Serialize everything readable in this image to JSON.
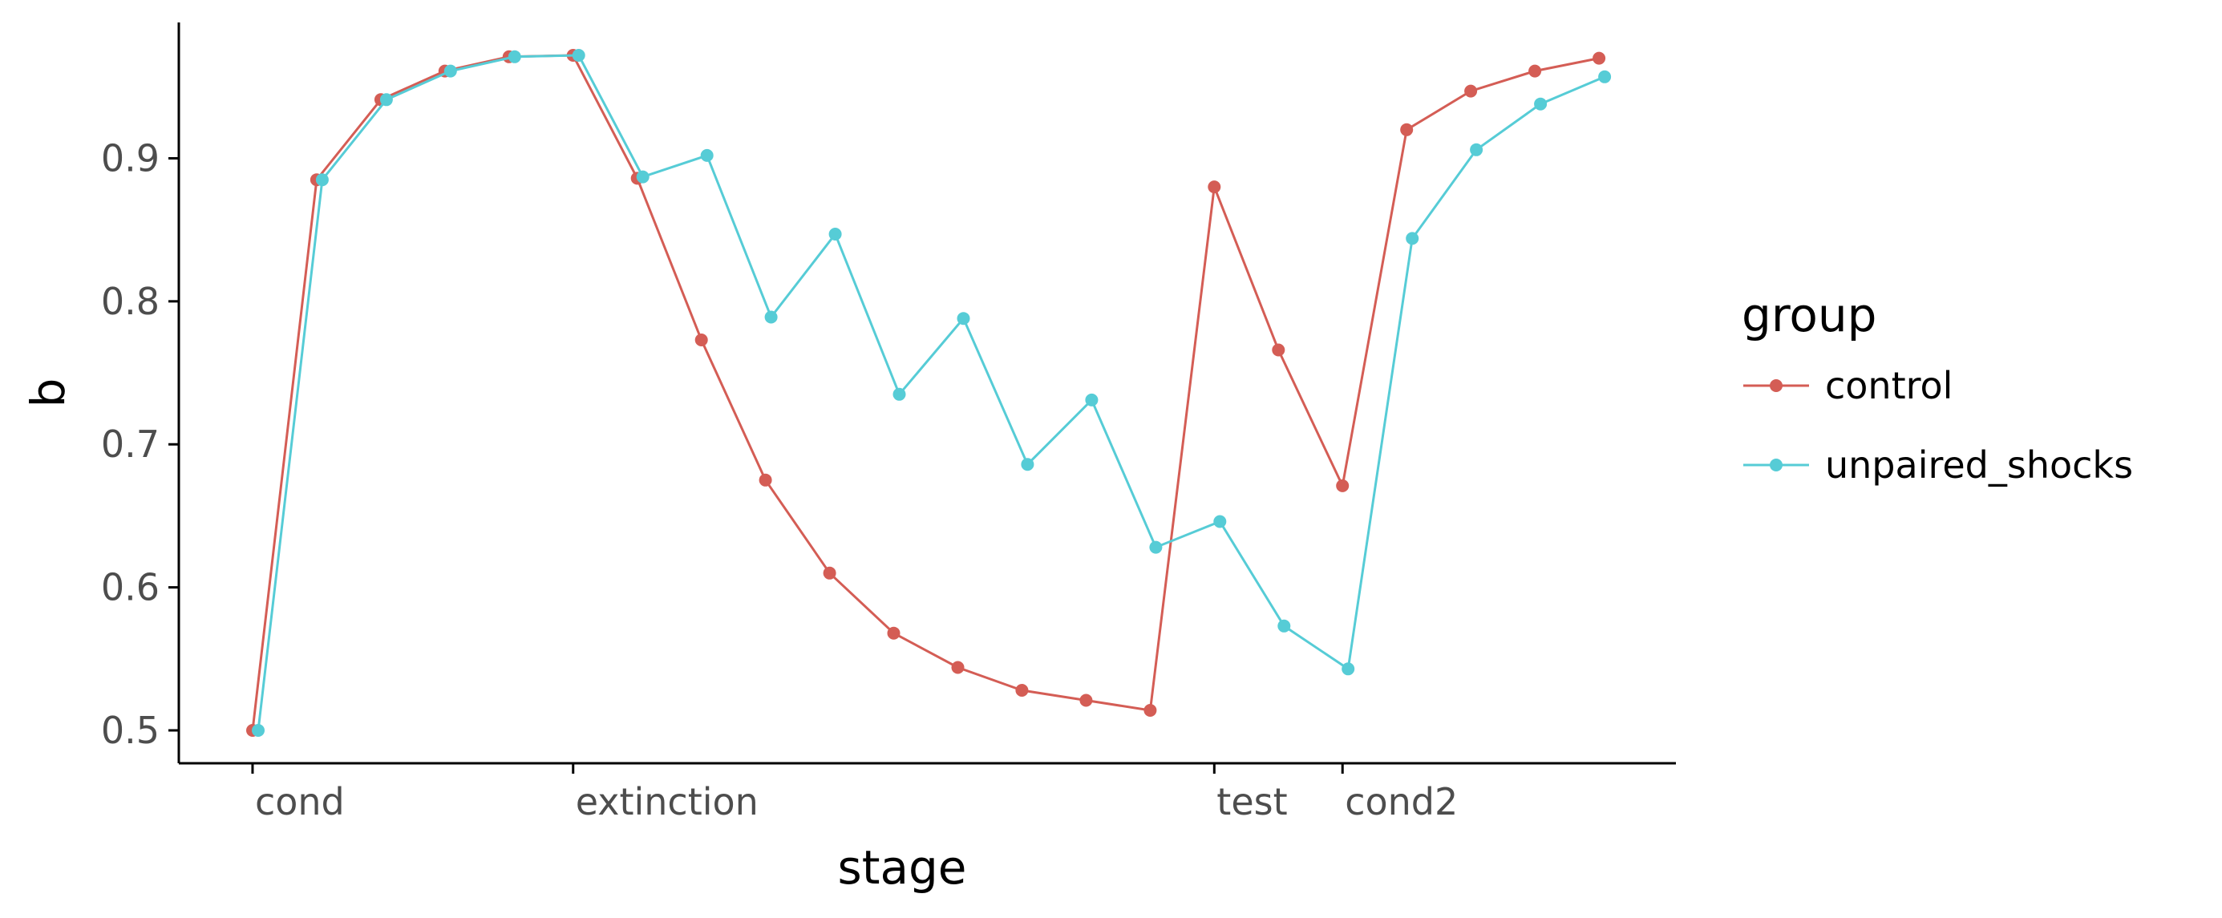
{
  "chart_data": {
    "type": "line",
    "xlabel": "stage",
    "ylabel": "b",
    "ylim": [
      0.477,
      0.995
    ],
    "yticks": [
      "0.5",
      "0.6",
      "0.7",
      "0.8",
      "0.9"
    ],
    "ytick_values": [
      0.5,
      0.6,
      0.7,
      0.8,
      0.9
    ],
    "xticks": [
      {
        "label": "cond",
        "trial": 0
      },
      {
        "label": "extinction",
        "trial": 5
      },
      {
        "label": "test",
        "trial": 15
      },
      {
        "label": "cond2",
        "trial": 17
      }
    ],
    "xlim": [
      -1.15,
      22.2
    ],
    "grid": false,
    "legend": {
      "title": "group",
      "position": "right"
    },
    "series": [
      {
        "name": "control",
        "color": "#d45d55",
        "trials": [
          0,
          1,
          2,
          3,
          4,
          5,
          6,
          7,
          8,
          9,
          10,
          11,
          12,
          13,
          14,
          15,
          16,
          17,
          18,
          19,
          20,
          21
        ],
        "values": [
          0.5,
          0.885,
          0.941,
          0.961,
          0.971,
          0.972,
          0.886,
          0.773,
          0.675,
          0.61,
          0.568,
          0.544,
          0.528,
          0.521,
          0.514,
          0.88,
          0.766,
          0.671,
          0.92,
          0.947,
          0.961,
          0.97
        ]
      },
      {
        "name": "unpaired_shocks",
        "color": "#56ccd6",
        "trials": [
          0,
          1,
          2,
          3,
          4,
          5,
          6,
          7,
          8,
          9,
          10,
          11,
          12,
          13,
          14,
          15,
          16,
          17,
          18,
          19,
          20,
          21
        ],
        "values": [
          0.5,
          0.885,
          0.941,
          0.961,
          0.971,
          0.972,
          0.887,
          0.902,
          0.789,
          0.847,
          0.735,
          0.788,
          0.686,
          0.731,
          0.628,
          0.646,
          0.573,
          0.543,
          0.844,
          0.906,
          0.938,
          0.957
        ]
      }
    ]
  }
}
